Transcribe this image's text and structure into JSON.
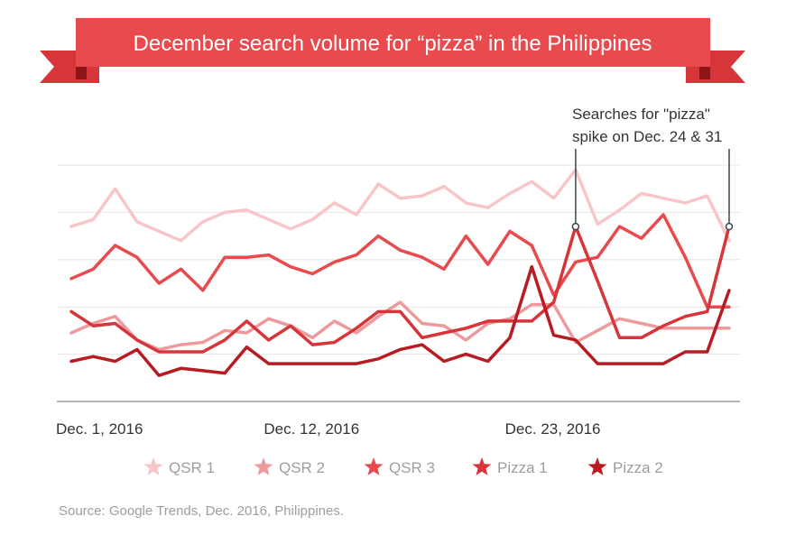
{
  "chart_data": {
    "type": "line",
    "title": "December search volume for “pizza” in the Philippines",
    "x": [
      1,
      2,
      3,
      4,
      5,
      6,
      7,
      8,
      9,
      10,
      11,
      12,
      13,
      14,
      15,
      16,
      17,
      18,
      19,
      20,
      21,
      22,
      23,
      24,
      25,
      26,
      27,
      28,
      29,
      30,
      31
    ],
    "x_ticks": [
      "Dec. 1, 2016",
      "Dec. 12, 2016",
      "Dec. 23, 2016"
    ],
    "ylim": [
      0,
      100
    ],
    "grid": true,
    "legend_position": "bottom",
    "series": [
      {
        "name": "QSR 1",
        "color": "#f8c6c8",
        "values": [
          74,
          77,
          90,
          76,
          72,
          68,
          76,
          80,
          81,
          77,
          73,
          77,
          84,
          79,
          92,
          86,
          87,
          91,
          84,
          82,
          88,
          93,
          86,
          98,
          75,
          81,
          88,
          86,
          84,
          87,
          68
        ]
      },
      {
        "name": "QSR 2",
        "color": "#ee999c",
        "values": [
          29,
          33,
          36,
          26,
          22,
          24,
          25,
          30,
          29,
          35,
          32,
          27,
          34,
          29,
          36,
          42,
          33,
          32,
          26,
          33,
          35,
          41,
          41,
          25,
          30,
          35,
          33,
          31,
          31,
          31,
          31
        ]
      },
      {
        "name": "QSR 3",
        "color": "#e84a4e",
        "values": [
          52,
          56,
          66,
          61,
          50,
          56,
          47,
          61,
          61,
          62,
          57,
          54,
          59,
          62,
          70,
          64,
          61,
          56,
          70,
          58,
          72,
          66,
          45,
          59,
          61,
          74,
          69,
          79,
          61,
          40,
          40
        ]
      },
      {
        "name": "Pizza 1",
        "color": "#d63539",
        "values": [
          38,
          32,
          33,
          26,
          21,
          21,
          21,
          26,
          34,
          26,
          32,
          24,
          25,
          31,
          38,
          38,
          27,
          29,
          31,
          34,
          34,
          34,
          42,
          74,
          51,
          27,
          27,
          32,
          36,
          38,
          74
        ]
      },
      {
        "name": "Pizza 2",
        "color": "#b71c22",
        "values": [
          17,
          19,
          17,
          22,
          11,
          14,
          13,
          12,
          23,
          16,
          16,
          16,
          16,
          16,
          18,
          22,
          24,
          17,
          20,
          17,
          27,
          57,
          28,
          26,
          16,
          16,
          16,
          16,
          21,
          21,
          47
        ]
      }
    ],
    "annotation": {
      "text_lines": [
        "Searches for \"pizza\"",
        "spike on Dec. 24 & 31"
      ],
      "days": [
        24,
        31
      ]
    },
    "source": "Source: Google Trends, Dec. 2016, Philippines."
  }
}
